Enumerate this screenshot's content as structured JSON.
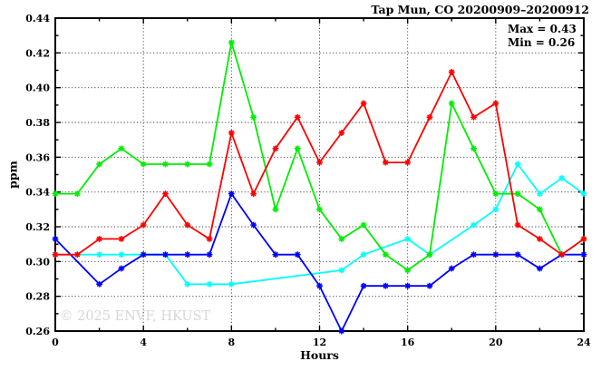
{
  "header": {
    "title": "Tap Mun, CO 20200909–20200912"
  },
  "annotation": {
    "max_label": "Max = 0.43",
    "min_label": "Min = 0.26"
  },
  "watermark": "© 2025 ENVF, HKUST",
  "chart_data": {
    "type": "line",
    "title": "Tap Mun, CO 20200909–20200912",
    "xlabel": "Hours",
    "ylabel": "ppm",
    "xlim": [
      0,
      24
    ],
    "ylim": [
      0.26,
      0.44
    ],
    "x_major_ticks": [
      0,
      4,
      8,
      12,
      16,
      20,
      24
    ],
    "x_tick_labels": [
      "0",
      "4",
      "8",
      "12",
      "16",
      "20",
      "24"
    ],
    "x_minor_ticks": [
      2,
      6,
      10,
      14,
      18,
      22
    ],
    "y_major_step": 0.02,
    "y_minor_step": 0.01,
    "y_tick_labels": [
      "0.26",
      "0.28",
      "0.30",
      "0.32",
      "0.34",
      "0.36",
      "0.38",
      "0.40",
      "0.42",
      "0.44"
    ],
    "grid": {
      "style": "dotted",
      "x_lines": [
        4,
        8,
        12,
        16,
        20
      ],
      "y_lines": [
        0.28,
        0.3,
        0.32,
        0.34,
        0.36,
        0.38,
        0.4,
        0.42
      ]
    },
    "legend": "none",
    "annotations": [
      "Max = 0.43",
      "Min = 0.26"
    ],
    "series": [
      {
        "name": "cyan-series",
        "color": "#00ffff",
        "points": [
          [
            0,
            0.304
          ],
          [
            1,
            0.304
          ],
          [
            2,
            0.304
          ],
          [
            3,
            0.304
          ],
          [
            4,
            0.304
          ],
          [
            5,
            0.304
          ],
          [
            6,
            0.287
          ],
          [
            7,
            0.287
          ],
          [
            8,
            0.287
          ],
          [
            13,
            0.295
          ],
          [
            14,
            0.304
          ],
          [
            16,
            0.313
          ],
          [
            17,
            0.304
          ],
          [
            19,
            0.321
          ],
          [
            20,
            0.33
          ],
          [
            21,
            0.356
          ],
          [
            22,
            0.339
          ],
          [
            23,
            0.348
          ],
          [
            24,
            0.339
          ]
        ]
      },
      {
        "name": "green-series",
        "color": "#00ee00",
        "points": [
          [
            0,
            0.339
          ],
          [
            1,
            0.339
          ],
          [
            2,
            0.356
          ],
          [
            3,
            0.365
          ],
          [
            4,
            0.356
          ],
          [
            5,
            0.356
          ],
          [
            6,
            0.356
          ],
          [
            7,
            0.356
          ],
          [
            8,
            0.426
          ],
          [
            9,
            0.383
          ],
          [
            10,
            0.33
          ],
          [
            11,
            0.365
          ],
          [
            12,
            0.33
          ],
          [
            13,
            0.313
          ],
          [
            14,
            0.321
          ],
          [
            15,
            0.304
          ],
          [
            16,
            0.295
          ],
          [
            17,
            0.304
          ],
          [
            18,
            0.391
          ],
          [
            19,
            0.365
          ],
          [
            20,
            0.339
          ],
          [
            21,
            0.339
          ],
          [
            22,
            0.33
          ],
          [
            23,
            0.304
          ],
          [
            24,
            0.313
          ]
        ]
      },
      {
        "name": "blue-series",
        "color": "#0000ff",
        "points": [
          [
            0,
            0.313
          ],
          [
            2,
            0.287
          ],
          [
            3,
            0.296
          ],
          [
            4,
            0.304
          ],
          [
            5,
            0.304
          ],
          [
            6,
            0.304
          ],
          [
            7,
            0.304
          ],
          [
            8,
            0.339
          ],
          [
            9,
            0.321
          ],
          [
            10,
            0.304
          ],
          [
            11,
            0.304
          ],
          [
            12,
            0.286
          ],
          [
            13,
            0.26
          ],
          [
            14,
            0.286
          ],
          [
            15,
            0.286
          ],
          [
            16,
            0.286
          ],
          [
            17,
            0.286
          ],
          [
            18,
            0.296
          ],
          [
            19,
            0.304
          ],
          [
            20,
            0.304
          ],
          [
            21,
            0.304
          ],
          [
            22,
            0.296
          ],
          [
            23,
            0.304
          ],
          [
            24,
            0.304
          ]
        ]
      },
      {
        "name": "red-series",
        "color": "#ff0000",
        "points": [
          [
            0,
            0.304
          ],
          [
            1,
            0.304
          ],
          [
            2,
            0.313
          ],
          [
            3,
            0.313
          ],
          [
            4,
            0.321
          ],
          [
            5,
            0.339
          ],
          [
            6,
            0.321
          ],
          [
            7,
            0.313
          ],
          [
            8,
            0.374
          ],
          [
            9,
            0.339
          ],
          [
            10,
            0.365
          ],
          [
            11,
            0.383
          ],
          [
            12,
            0.357
          ],
          [
            13,
            0.374
          ],
          [
            14,
            0.391
          ],
          [
            15,
            0.357
          ],
          [
            16,
            0.357
          ],
          [
            17,
            0.383
          ],
          [
            18,
            0.409
          ],
          [
            19,
            0.383
          ],
          [
            20,
            0.391
          ],
          [
            21,
            0.321
          ],
          [
            22,
            0.313
          ],
          [
            23,
            0.304
          ],
          [
            24,
            0.313
          ]
        ]
      }
    ]
  }
}
